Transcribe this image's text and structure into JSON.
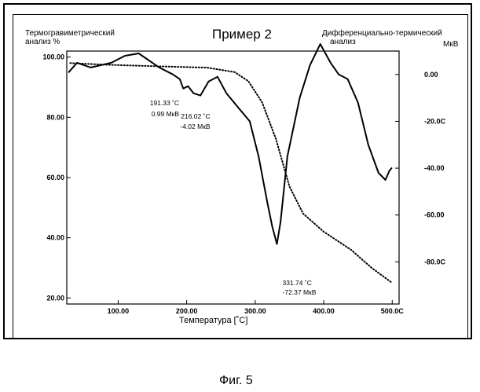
{
  "title": "Пример 2",
  "caption": "Фиг. 5",
  "chart_data": {
    "type": "line",
    "title": "Пример 2",
    "left_axis_label": [
      "Термогравиметрический",
      "анализ %"
    ],
    "right_axis_label": [
      "Дифференциально-термический",
      "анализ"
    ],
    "right_axis_unit": "МкВ",
    "xlabel": "Температура [˚C]",
    "xlim": [
      25,
      510
    ],
    "ylim_left": [
      18,
      102
    ],
    "ylim_right": [
      -98,
      10
    ],
    "x_ticks": [
      100,
      200,
      300,
      400,
      500
    ],
    "x_tick_labels": [
      "100.00",
      "200.00",
      "300.00",
      "400.00",
      "500.0C"
    ],
    "y_left_ticks": [
      100,
      80,
      60,
      40,
      20
    ],
    "y_left_tick_labels": [
      "100.00",
      "80.00",
      "60.00",
      "40.00",
      "20.00"
    ],
    "y_right_ticks": [
      0,
      -20,
      -40,
      -60,
      -80
    ],
    "y_right_tick_labels": [
      "0.00",
      "-20.0C",
      "-40.00",
      "-60.00",
      "-80.0C"
    ],
    "series": [
      {
        "name": "Термогравиметрический анализ (TG)",
        "axis": "left",
        "style": "dotted",
        "x": [
          30,
          80,
          150,
          230,
          270,
          290,
          310,
          330,
          350,
          370,
          400,
          440,
          470,
          500
        ],
        "y": [
          98,
          97.5,
          97,
          96.5,
          95,
          92,
          85,
          73,
          57,
          48,
          42,
          36,
          30,
          25
        ]
      },
      {
        "name": "Дифференциально-термический анализ (DTA)",
        "axis": "right",
        "style": "solid",
        "x": [
          28,
          40,
          60,
          90,
          110,
          130,
          160,
          180,
          190,
          195,
          202,
          210,
          220,
          232,
          245,
          258,
          275,
          292,
          305,
          318,
          325,
          331.74,
          337,
          347,
          365,
          380,
          395,
          410,
          422,
          435,
          450,
          465,
          480,
          490,
          496,
          499
        ],
        "y": [
          1,
          5,
          3,
          5,
          8,
          9,
          3,
          0,
          -2,
          -6,
          -5,
          -8,
          -9,
          -3,
          -1,
          -8,
          -14,
          -20,
          -35,
          -55,
          -65,
          -72.37,
          -63,
          -35,
          -10,
          4,
          13,
          5,
          0,
          -2,
          -12,
          -30,
          -42,
          -45,
          -41,
          -40
        ]
      }
    ],
    "annotations": [
      {
        "x": 191.33,
        "lines": [
          "191.33 ˚C",
          "0.99 МкВ"
        ]
      },
      {
        "x": 216.02,
        "lines": [
          "216.02 ˚C",
          "-4.02 МкВ"
        ]
      },
      {
        "x": 331.74,
        "lines": [
          "331.74 ˚C",
          "-72.37  МкВ"
        ]
      }
    ]
  }
}
